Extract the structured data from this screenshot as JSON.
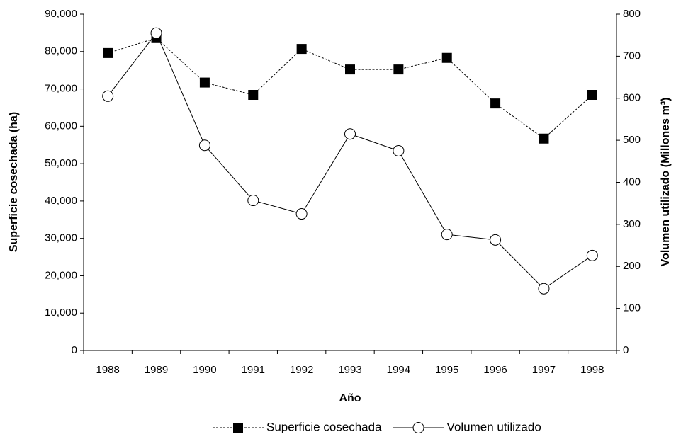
{
  "chart_data": {
    "type": "line",
    "xlabel": "Año",
    "ylabel": "Superficie cosechada (ha)",
    "y2label": "Volumen utilizado (Millones m³)",
    "categories": [
      "1988",
      "1989",
      "1990",
      "1991",
      "1992",
      "1993",
      "1994",
      "1995",
      "1996",
      "1997",
      "1998"
    ],
    "ylim": [
      0,
      90000
    ],
    "yticks": [
      0,
      {
        "value": 10000,
        "label": "10,000"
      },
      {
        "value": 20000,
        "label": "20,000"
      },
      {
        "value": 30000,
        "label": "30,000"
      },
      {
        "value": 40000,
        "label": "40,000"
      },
      {
        "value": 50000,
        "label": "50,000"
      },
      {
        "value": 60000,
        "label": "60,000"
      },
      {
        "value": 70000,
        "label": "70,000"
      },
      {
        "value": 80000,
        "label": "80,000"
      },
      {
        "value": 90000,
        "label": "90,000"
      }
    ],
    "y2lim": [
      0,
      800
    ],
    "y2ticks": [
      0,
      100,
      200,
      300,
      400,
      500,
      600,
      700,
      800
    ],
    "legend": "bottom",
    "series": [
      {
        "name": "Superficie cosechada",
        "color": "#000000",
        "marker": "square",
        "dash": true,
        "values": [
          79600,
          83600,
          71700,
          68400,
          80700,
          75200,
          75200,
          78300,
          66100,
          56700,
          68400
        ]
      },
      {
        "name": "Volumen utilizado",
        "color": "#000000",
        "marker": "circle",
        "axis": "y2",
        "values": [
          605,
          755,
          488,
          357,
          325,
          515,
          475,
          276,
          263,
          147,
          226
        ]
      }
    ]
  }
}
